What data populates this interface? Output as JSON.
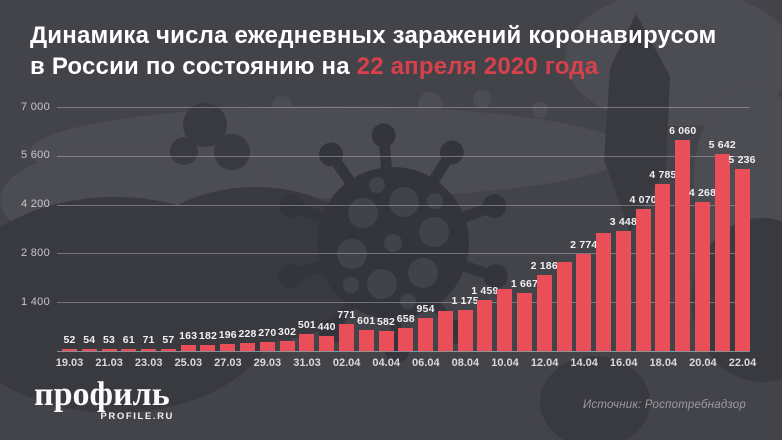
{
  "page": {
    "background": "#43434a"
  },
  "title": {
    "line1": "Динамика числа ежедневных заражений коронавирусом",
    "line2_white": "в России по состоянию на",
    "line2_red": "22 апреля 2020 года",
    "red_color": "#d8404b"
  },
  "chart_data": {
    "type": "bar",
    "title": "Динамика числа ежедневных заражений коронавирусом в России по состоянию на 22 апреля 2020 года",
    "x": [
      "19.03",
      "20.03",
      "21.03",
      "22.03",
      "23.03",
      "24.03",
      "25.03",
      "26.03",
      "27.03",
      "28.03",
      "29.03",
      "30.03",
      "31.03",
      "01.04",
      "02.04",
      "03.04",
      "04.04",
      "05.04",
      "06.04",
      "07.04",
      "08.04",
      "09.04",
      "10.04",
      "11.04",
      "12.04",
      "13.04",
      "14.04",
      "15.04",
      "16.04",
      "17.04",
      "18.04",
      "19.04",
      "20.04",
      "21.04",
      "22.04"
    ],
    "values": [
      52,
      54,
      53,
      61,
      71,
      57,
      163,
      182,
      196,
      228,
      270,
      302,
      501,
      440,
      771,
      601,
      582,
      658,
      954,
      1154,
      1175,
      1459,
      1786,
      1667,
      2186,
      2558,
      2774,
      3388,
      3448,
      4070,
      4785,
      6060,
      4268,
      5642,
      5236
    ],
    "bar_labels": [
      "52",
      "54",
      "53",
      "61",
      "71",
      "57",
      "163",
      "182",
      "196",
      "228",
      "270",
      "302",
      "501",
      "440",
      "771",
      "601",
      "582",
      "658",
      "954",
      "",
      "1 175",
      "1 459",
      "",
      "1 667",
      "2 186",
      "",
      "2 774",
      "",
      "3 448",
      "4 070",
      "4 785",
      "6 060",
      "4 268",
      "5 642",
      "5 236"
    ],
    "x_ticks": [
      "19.03",
      "21.03",
      "23.03",
      "25.03",
      "27.03",
      "29.03",
      "31.03",
      "02.04",
      "04.04",
      "06.04",
      "08.04",
      "10.04",
      "12.04",
      "14.04",
      "16.04",
      "18.04",
      "20.04",
      "22.04"
    ],
    "y_ticks": [
      {
        "label": "7 000",
        "value": 7000
      },
      {
        "label": "5 600",
        "value": 5600
      },
      {
        "label": "4 200",
        "value": 4200
      },
      {
        "label": "2 800",
        "value": 2800
      },
      {
        "label": "1 400",
        "value": 1400
      }
    ],
    "ylim": [
      0,
      7000
    ],
    "grid": true,
    "legend": "none",
    "bar_color": "#ea4e59"
  },
  "footer": {
    "logo_word": "профиль",
    "logo_sub": "PROFILE.RU",
    "source_prefix": "Источник:",
    "source_name": "Роспотребнадзор"
  },
  "decorations": {
    "map": "russia-map-silhouette",
    "virus": "coronavirus-icon"
  }
}
